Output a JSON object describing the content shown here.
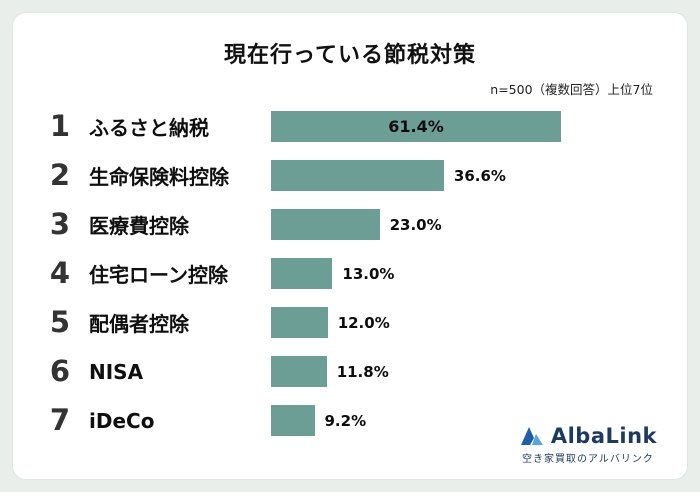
{
  "chart_data": {
    "type": "bar",
    "orientation": "horizontal",
    "title": "現在行っている節税対策",
    "note": "n=500（複数回答）上位7位",
    "categories": [
      "ふるさと納税",
      "生命保険料控除",
      "医療費控除",
      "住宅ローン控除",
      "配偶者控除",
      "NISA",
      "iDeCo"
    ],
    "values": [
      61.4,
      36.6,
      23.0,
      13.0,
      12.0,
      11.8,
      9.2
    ],
    "value_labels": [
      "61.4%",
      "36.6%",
      "23.0%",
      "13.0%",
      "12.0%",
      "11.8%",
      "9.2%"
    ],
    "ranks": [
      "1",
      "2",
      "3",
      "4",
      "5",
      "6",
      "7"
    ],
    "bar_color": "#6d9e96",
    "xlim": [
      0,
      65
    ],
    "legend": "none",
    "grid": "off"
  },
  "logo": {
    "brand": "AlbaLink",
    "tagline": "空き家買取のアルバリンク",
    "icon_color_dark": "#1f5fa8",
    "icon_color_light": "#58a6dc"
  }
}
